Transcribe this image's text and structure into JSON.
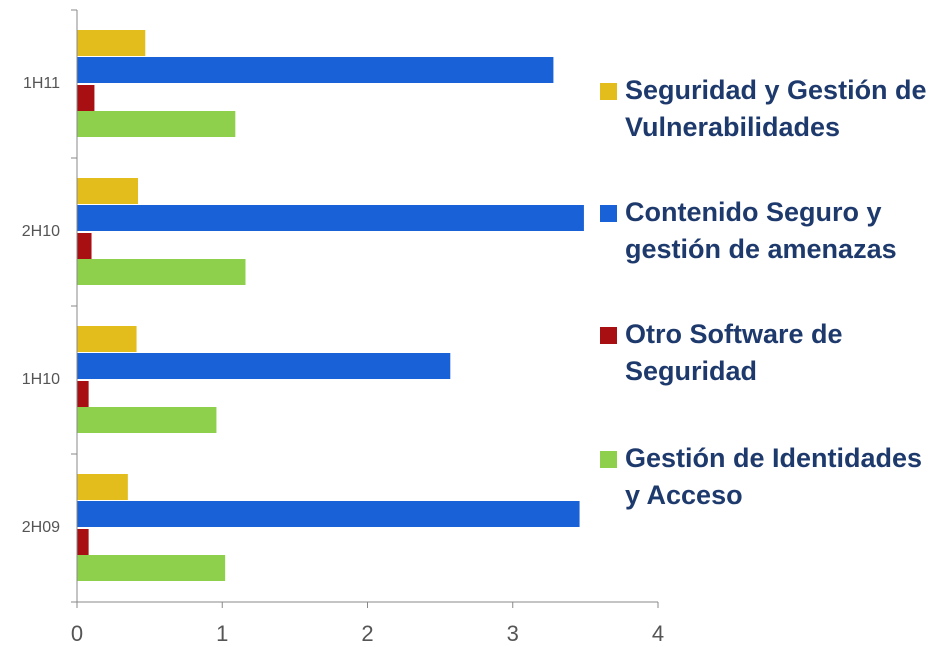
{
  "chart_data": {
    "type": "hbar",
    "categories": [
      "1H11",
      "2H10",
      "1H10",
      "2H09"
    ],
    "series": [
      {
        "name": "Seguridad y Gestión de Vulnerabilidades",
        "color": "#e2bd1b",
        "values": [
          0.47,
          0.42,
          0.41,
          0.35
        ]
      },
      {
        "name": "Contenido Seguro y gestión de amenazas",
        "color": "#1861d6",
        "values": [
          3.28,
          3.49,
          2.57,
          3.46
        ]
      },
      {
        "name": "Otro Software de Seguridad",
        "color": "#a80f12",
        "values": [
          0.12,
          0.1,
          0.08,
          0.08
        ]
      },
      {
        "name": "Gestión de Identidades y Acceso",
        "color": "#8ed04c",
        "values": [
          1.09,
          1.16,
          0.96,
          1.02
        ]
      }
    ],
    "xlim": [
      0,
      4
    ],
    "xticks": [
      0,
      1,
      2,
      3,
      4
    ],
    "legend": "right"
  }
}
